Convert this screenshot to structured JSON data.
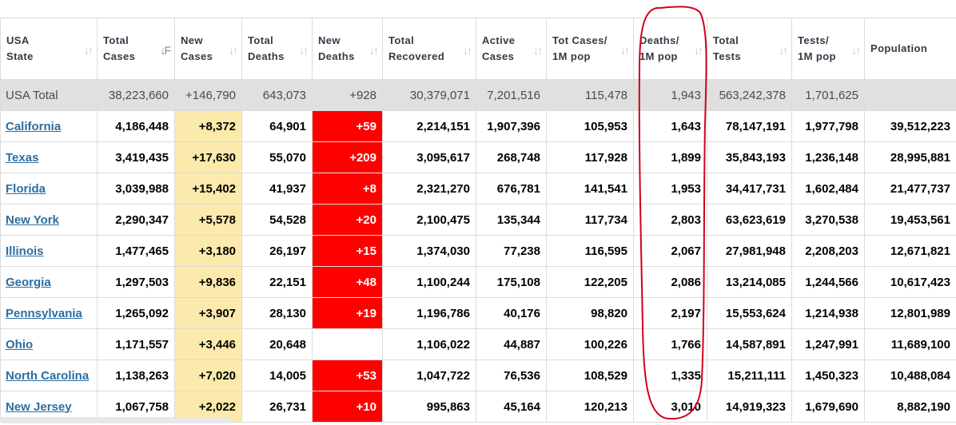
{
  "headers": [
    {
      "line1": "USA",
      "line2": "State",
      "sort": "↓↑",
      "active": false
    },
    {
      "line1": "Total",
      "line2": "Cases",
      "sort": "↓F",
      "active": true
    },
    {
      "line1": "New",
      "line2": "Cases",
      "sort": "↓↑",
      "active": false
    },
    {
      "line1": "Total",
      "line2": "Deaths",
      "sort": "↓↑",
      "active": false
    },
    {
      "line1": "New",
      "line2": "Deaths",
      "sort": "↓↑",
      "active": false
    },
    {
      "line1": "Total",
      "line2": "Recovered",
      "sort": "↓↑",
      "active": false
    },
    {
      "line1": "Active",
      "line2": "Cases",
      "sort": "↓↑",
      "active": false
    },
    {
      "line1": "Tot Cases/",
      "line2": "1M pop",
      "sort": "↓↑",
      "active": false
    },
    {
      "line1": "Deaths/",
      "line2": "1M pop",
      "sort": "↓↑",
      "active": false
    },
    {
      "line1": "Total",
      "line2": "Tests",
      "sort": "↓↑",
      "active": false
    },
    {
      "line1": "Tests/",
      "line2": "1M pop",
      "sort": "↓↑",
      "active": false
    },
    {
      "line1": "",
      "line2": "Population",
      "sort": "",
      "active": false
    }
  ],
  "total_row": [
    "USA Total",
    "38,223,660",
    "+146,790",
    "643,073",
    "+928",
    "30,379,071",
    "7,201,516",
    "115,478",
    "1,943",
    "563,242,378",
    "1,701,625",
    ""
  ],
  "rows": [
    [
      "California",
      "4,186,448",
      "+8,372",
      "64,901",
      "+59",
      "2,214,151",
      "1,907,396",
      "105,953",
      "1,643",
      "78,147,191",
      "1,977,798",
      "39,512,223"
    ],
    [
      "Texas",
      "3,419,435",
      "+17,630",
      "55,070",
      "+209",
      "3,095,617",
      "268,748",
      "117,928",
      "1,899",
      "35,843,193",
      "1,236,148",
      "28,995,881"
    ],
    [
      "Florida",
      "3,039,988",
      "+15,402",
      "41,937",
      "+8",
      "2,321,270",
      "676,781",
      "141,541",
      "1,953",
      "34,417,731",
      "1,602,484",
      "21,477,737"
    ],
    [
      "New York",
      "2,290,347",
      "+5,578",
      "54,528",
      "+20",
      "2,100,475",
      "135,344",
      "117,734",
      "2,803",
      "63,623,619",
      "3,270,538",
      "19,453,561"
    ],
    [
      "Illinois",
      "1,477,465",
      "+3,180",
      "26,197",
      "+15",
      "1,374,030",
      "77,238",
      "116,595",
      "2,067",
      "27,981,948",
      "2,208,203",
      "12,671,821"
    ],
    [
      "Georgia",
      "1,297,503",
      "+9,836",
      "22,151",
      "+48",
      "1,100,244",
      "175,108",
      "122,205",
      "2,086",
      "13,214,085",
      "1,244,566",
      "10,617,423"
    ],
    [
      "Pennsylvania",
      "1,265,092",
      "+3,907",
      "28,130",
      "+19",
      "1,196,786",
      "40,176",
      "98,820",
      "2,197",
      "15,553,624",
      "1,214,938",
      "12,801,989"
    ],
    [
      "Ohio",
      "1,171,557",
      "+3,446",
      "20,648",
      "",
      "1,106,022",
      "44,887",
      "100,226",
      "1,766",
      "14,587,891",
      "1,247,991",
      "11,689,100"
    ],
    [
      "North Carolina",
      "1,138,263",
      "+7,020",
      "14,005",
      "+53",
      "1,047,722",
      "76,536",
      "108,529",
      "1,335",
      "15,211,111",
      "1,450,323",
      "10,488,084"
    ],
    [
      "New Jersey",
      "1,067,758",
      "+2,022",
      "26,731",
      "+10",
      "995,863",
      "45,164",
      "120,213",
      "3,010",
      "14,919,323",
      "1,679,690",
      "8,882,190"
    ]
  ],
  "colors": {
    "new_cases_bg": "#fbeaab",
    "new_deaths_bg": "#ff0000",
    "total_row_bg": "#e0e0e0",
    "link": "#2c6ea0",
    "annotation": "#d0021b"
  }
}
